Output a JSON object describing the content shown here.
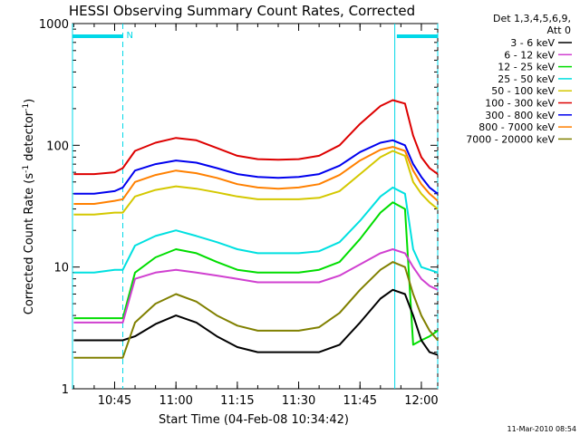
{
  "chart_data": {
    "type": "line",
    "title": "HESSI Observing Summary Count Rates, Corrected",
    "xlabel": "Start Time (04-Feb-08 10:34:42)",
    "ylabel": "Corrected Count Rate (s",
    "ylabel_sup1": "-1",
    "ylabel_mid": " detector",
    "ylabel_sup2": "-1",
    "ylabel_end": ")",
    "y_scale": "log",
    "ylim": [
      1,
      1000
    ],
    "xlim": [
      "10:34:42",
      "12:04:00"
    ],
    "x_ticks": [
      "10:45",
      "11:00",
      "11:15",
      "11:30",
      "11:45",
      "12:00"
    ],
    "y_ticks": [
      "1",
      "10",
      "100",
      "1000"
    ],
    "legend_header": [
      "Det 1,3,4,5,6,9,",
      "Att 0"
    ],
    "legend_position": "right",
    "timestamp": "11-Mar-2010 08:54",
    "night_marker": "N",
    "markers": {
      "night_segments": [
        [
          "10:34:42",
          "10:47:00"
        ],
        [
          "11:54:00",
          "12:04:00"
        ]
      ],
      "dashed_lines": [
        "10:47:00",
        "12:04:00"
      ],
      "solid_lines": [
        "10:34:42",
        "11:53:30"
      ]
    },
    "series": [
      {
        "name": "3 - 6 keV",
        "color": "#000000",
        "x": [
          "10:35",
          "10:40",
          "10:45",
          "10:47",
          "10:50",
          "10:55",
          "11:00",
          "11:05",
          "11:10",
          "11:15",
          "11:20",
          "11:25",
          "11:30",
          "11:35",
          "11:40",
          "11:45",
          "11:50",
          "11:53",
          "11:56",
          "11:58",
          "12:00",
          "12:02",
          "12:04"
        ],
        "values": [
          2.5,
          2.5,
          2.5,
          2.5,
          2.7,
          3.4,
          4.0,
          3.5,
          2.7,
          2.2,
          2.0,
          2.0,
          2.0,
          2.0,
          2.3,
          3.5,
          5.5,
          6.5,
          6.0,
          4.0,
          2.5,
          2.0,
          1.9
        ]
      },
      {
        "name": "6 - 12 keV",
        "color": "#d040d0",
        "x": [
          "10:35",
          "10:40",
          "10:45",
          "10:47",
          "10:50",
          "10:55",
          "11:00",
          "11:05",
          "11:10",
          "11:15",
          "11:20",
          "11:25",
          "11:30",
          "11:35",
          "11:40",
          "11:45",
          "11:50",
          "11:53",
          "11:56",
          "11:58",
          "12:00",
          "12:02",
          "12:04"
        ],
        "values": [
          3.5,
          3.5,
          3.5,
          3.5,
          8.0,
          9.0,
          9.5,
          9.0,
          8.5,
          8.0,
          7.5,
          7.5,
          7.5,
          7.5,
          8.5,
          10.5,
          13.0,
          14.0,
          13.0,
          10.0,
          8.0,
          7.0,
          6.5
        ]
      },
      {
        "name": "12 - 25 keV",
        "color": "#00dd00",
        "x": [
          "10:35",
          "10:40",
          "10:45",
          "10:47",
          "10:50",
          "10:55",
          "11:00",
          "11:05",
          "11:10",
          "11:15",
          "11:20",
          "11:25",
          "11:30",
          "11:35",
          "11:40",
          "11:45",
          "11:50",
          "11:53",
          "11:56",
          "11:58",
          "12:00",
          "12:02",
          "12:04"
        ],
        "values": [
          3.8,
          3.8,
          3.8,
          3.8,
          9.0,
          12.0,
          14.0,
          13.0,
          11.0,
          9.5,
          9.0,
          9.0,
          9.0,
          9.5,
          11.0,
          17.0,
          28.0,
          34.0,
          30.0,
          2.3,
          2.5,
          2.7,
          3.0
        ]
      },
      {
        "name": "25 - 50 keV",
        "color": "#00e0e0",
        "x": [
          "10:35",
          "10:40",
          "10:45",
          "10:47",
          "10:50",
          "10:55",
          "11:00",
          "11:05",
          "11:10",
          "11:15",
          "11:20",
          "11:25",
          "11:30",
          "11:35",
          "11:40",
          "11:45",
          "11:50",
          "11:53",
          "11:56",
          "11:58",
          "12:00",
          "12:02",
          "12:04"
        ],
        "values": [
          9.0,
          9.0,
          9.5,
          9.5,
          15.0,
          18.0,
          20.0,
          18.0,
          16.0,
          14.0,
          13.0,
          13.0,
          13.0,
          13.5,
          16.0,
          24.0,
          38.0,
          45.0,
          40.0,
          14.0,
          10.0,
          9.5,
          9.0
        ]
      },
      {
        "name": "50 - 100 keV",
        "color": "#d4c800",
        "x": [
          "10:35",
          "10:40",
          "10:45",
          "10:47",
          "10:50",
          "10:55",
          "11:00",
          "11:05",
          "11:10",
          "11:15",
          "11:20",
          "11:25",
          "11:30",
          "11:35",
          "11:40",
          "11:45",
          "11:50",
          "11:53",
          "11:56",
          "11:58",
          "12:00",
          "12:02",
          "12:04"
        ],
        "values": [
          27,
          27,
          28,
          28,
          38,
          43,
          46,
          44,
          41,
          38,
          36,
          36,
          36,
          37,
          42,
          58,
          80,
          90,
          82,
          50,
          40,
          34,
          30
        ]
      },
      {
        "name": "100 - 300 keV",
        "color": "#dd0000",
        "x": [
          "10:35",
          "10:40",
          "10:45",
          "10:47",
          "10:50",
          "10:55",
          "11:00",
          "11:05",
          "11:10",
          "11:15",
          "11:20",
          "11:25",
          "11:30",
          "11:35",
          "11:40",
          "11:45",
          "11:50",
          "11:53",
          "11:56",
          "11:58",
          "12:00",
          "12:02",
          "12:04"
        ],
        "values": [
          58,
          58,
          60,
          65,
          90,
          105,
          115,
          110,
          95,
          82,
          77,
          76,
          77,
          82,
          100,
          150,
          210,
          235,
          220,
          120,
          80,
          65,
          58
        ]
      },
      {
        "name": "300 - 800 keV",
        "color": "#0000ee",
        "x": [
          "10:35",
          "10:40",
          "10:45",
          "10:47",
          "10:50",
          "10:55",
          "11:00",
          "11:05",
          "11:10",
          "11:15",
          "11:20",
          "11:25",
          "11:30",
          "11:35",
          "11:40",
          "11:45",
          "11:50",
          "11:53",
          "11:56",
          "11:58",
          "12:00",
          "12:02",
          "12:04"
        ],
        "values": [
          40,
          40,
          42,
          45,
          62,
          70,
          75,
          72,
          65,
          58,
          55,
          54,
          55,
          58,
          68,
          88,
          105,
          110,
          100,
          70,
          55,
          45,
          40
        ]
      },
      {
        "name": "800 - 7000 keV",
        "color": "#ff8000",
        "x": [
          "10:35",
          "10:40",
          "10:45",
          "10:47",
          "10:50",
          "10:55",
          "11:00",
          "11:05",
          "11:10",
          "11:15",
          "11:20",
          "11:25",
          "11:30",
          "11:35",
          "11:40",
          "11:45",
          "11:50",
          "11:53",
          "11:56",
          "11:58",
          "12:00",
          "12:02",
          "12:04"
        ],
        "values": [
          33,
          33,
          35,
          36,
          50,
          57,
          62,
          59,
          54,
          48,
          45,
          44,
          45,
          48,
          57,
          75,
          92,
          97,
          90,
          62,
          48,
          40,
          35
        ]
      },
      {
        "name": "7000 - 20000 keV",
        "color": "#808000",
        "x": [
          "10:35",
          "10:40",
          "10:45",
          "10:47",
          "10:50",
          "10:55",
          "11:00",
          "11:05",
          "11:10",
          "11:15",
          "11:20",
          "11:25",
          "11:30",
          "11:35",
          "11:40",
          "11:45",
          "11:50",
          "11:53",
          "11:56",
          "11:58",
          "12:00",
          "12:02",
          "12:04"
        ],
        "values": [
          1.8,
          1.8,
          1.8,
          1.8,
          3.5,
          5.0,
          6.0,
          5.2,
          4.0,
          3.3,
          3.0,
          3.0,
          3.0,
          3.2,
          4.2,
          6.5,
          9.5,
          11.0,
          10.0,
          6.0,
          4.0,
          3.0,
          2.5
        ]
      }
    ]
  }
}
